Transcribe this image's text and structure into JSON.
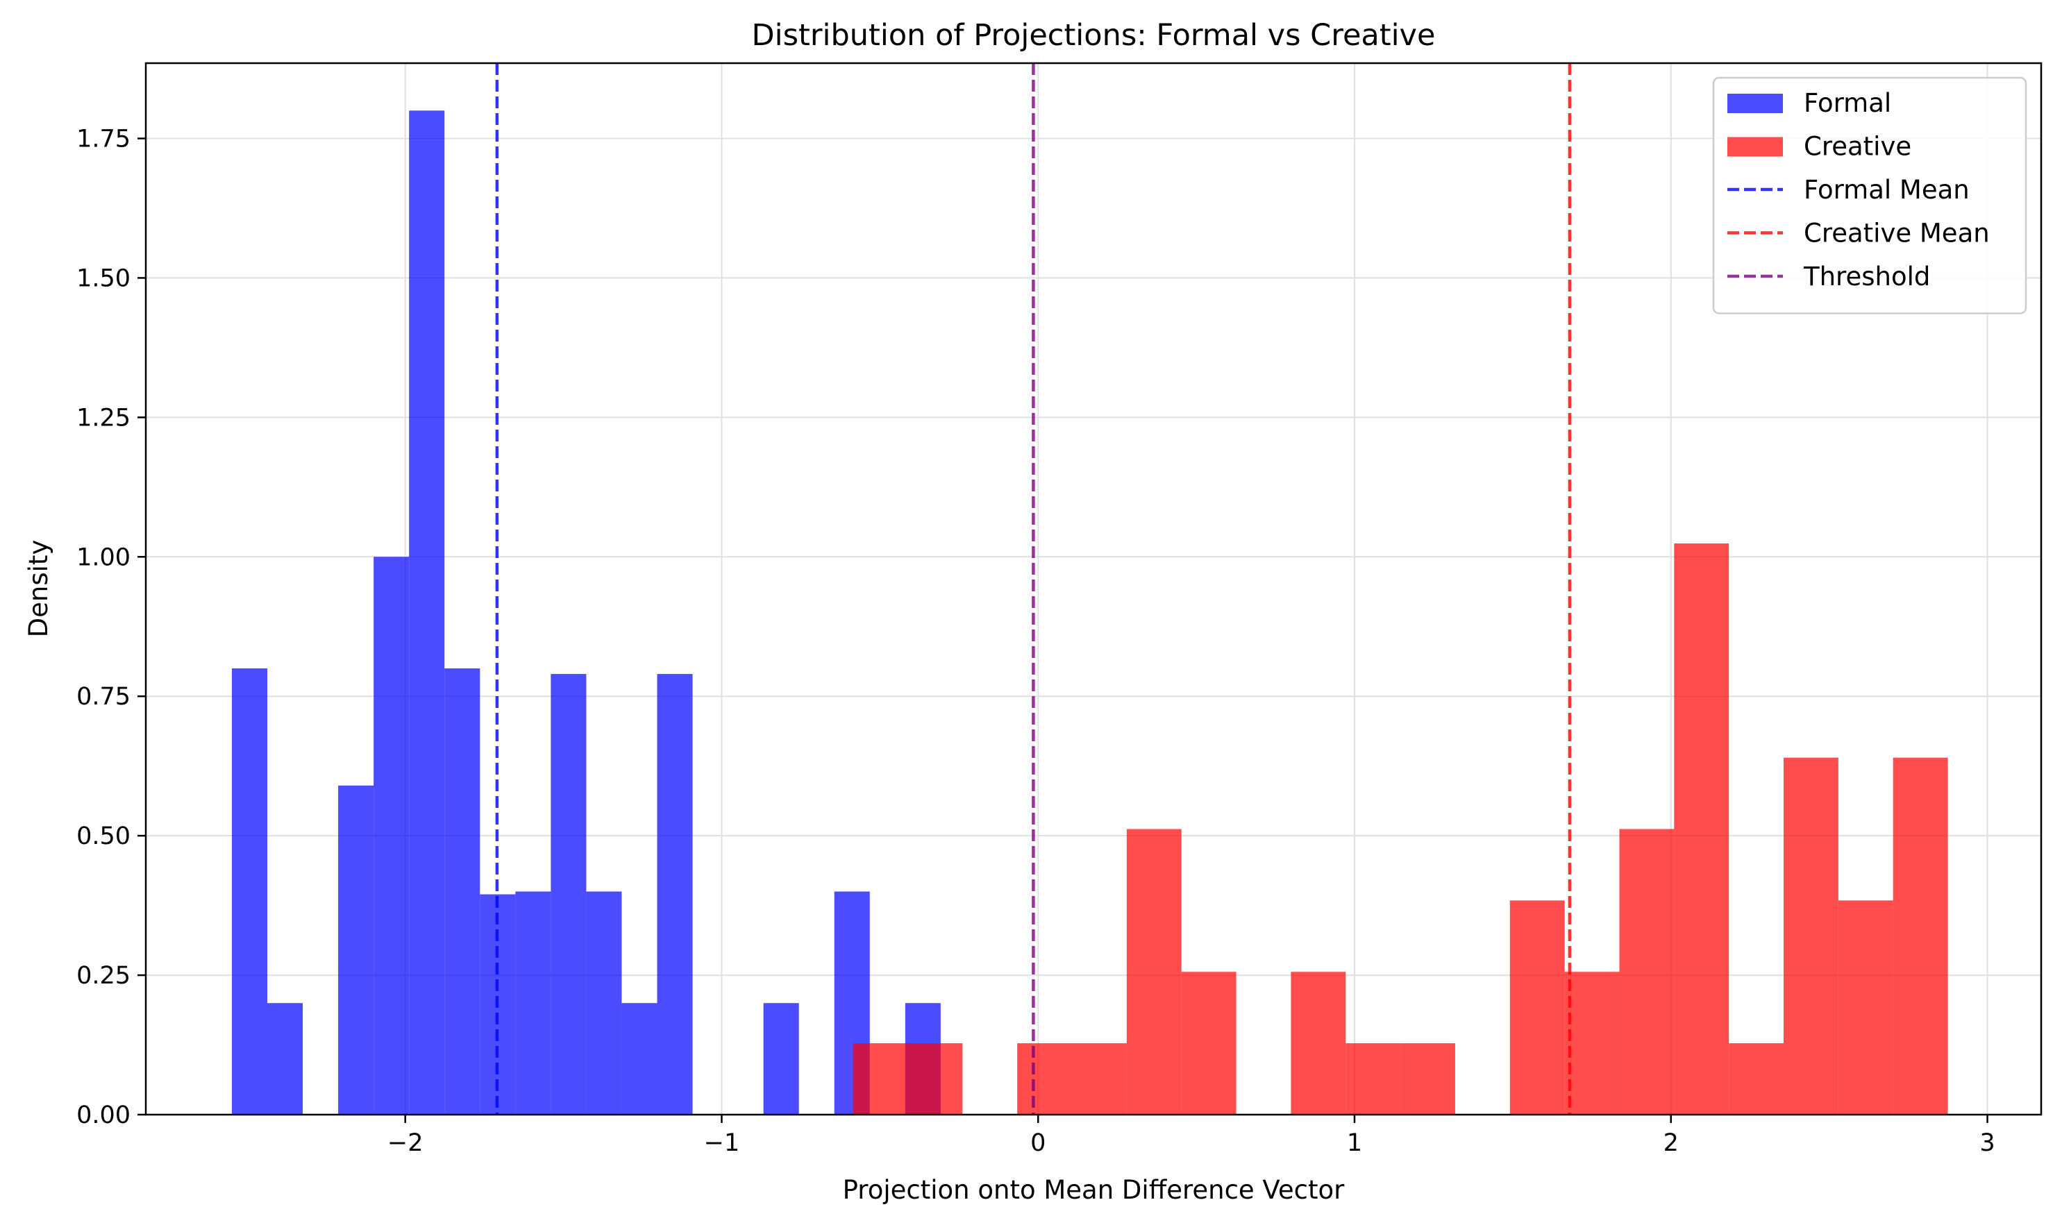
{
  "chart_data": {
    "type": "histogram",
    "title": "Distribution of Projections: Formal vs Creative",
    "xlabel": "Projection onto Mean Difference Vector",
    "ylabel": "Density",
    "xlim": [
      -2.82,
      3.17
    ],
    "ylim": [
      0,
      1.885
    ],
    "grid": true,
    "legend_position": "top-right",
    "x_ticks": [
      {
        "value": -2,
        "label": "−2"
      },
      {
        "value": -1,
        "label": "−1"
      },
      {
        "value": 0,
        "label": "0"
      },
      {
        "value": 1,
        "label": "1"
      },
      {
        "value": 2,
        "label": "2"
      },
      {
        "value": 3,
        "label": "3"
      }
    ],
    "y_ticks": [
      {
        "value": 0,
        "label": "0.00"
      },
      {
        "value": 0.25,
        "label": "0.25"
      },
      {
        "value": 0.5,
        "label": "0.50"
      },
      {
        "value": 0.75,
        "label": "0.75"
      },
      {
        "value": 1.0,
        "label": "1.00"
      },
      {
        "value": 1.25,
        "label": "1.25"
      },
      {
        "value": 1.5,
        "label": "1.50"
      },
      {
        "value": 1.75,
        "label": "1.75"
      }
    ],
    "series": [
      {
        "name": "Formal",
        "color": "#0000ff",
        "alpha": 0.7,
        "bins": [
          {
            "x0": -2.548,
            "x1": -2.436,
            "y": 0.8
          },
          {
            "x0": -2.436,
            "x1": -2.324,
            "y": 0.2
          },
          {
            "x0": -2.212,
            "x1": -2.1,
            "y": 0.59
          },
          {
            "x0": -2.1,
            "x1": -1.988,
            "y": 1.0
          },
          {
            "x0": -1.988,
            "x1": -1.876,
            "y": 1.8
          },
          {
            "x0": -1.876,
            "x1": -1.764,
            "y": 0.8
          },
          {
            "x0": -1.764,
            "x1": -1.652,
            "y": 0.395
          },
          {
            "x0": -1.652,
            "x1": -1.54,
            "y": 0.4
          },
          {
            "x0": -1.54,
            "x1": -1.428,
            "y": 0.79
          },
          {
            "x0": -1.428,
            "x1": -1.316,
            "y": 0.4
          },
          {
            "x0": -1.316,
            "x1": -1.204,
            "y": 0.2
          },
          {
            "x0": -1.204,
            "x1": -1.092,
            "y": 0.79
          },
          {
            "x0": -0.868,
            "x1": -0.756,
            "y": 0.2
          },
          {
            "x0": -0.644,
            "x1": -0.532,
            "y": 0.4
          },
          {
            "x0": -0.42,
            "x1": -0.308,
            "y": 0.2
          }
        ]
      },
      {
        "name": "Creative",
        "color": "#ff0000",
        "alpha": 0.7,
        "bins": [
          {
            "x0": -0.585,
            "x1": -0.412,
            "y": 0.128
          },
          {
            "x0": -0.412,
            "x1": -0.239,
            "y": 0.128
          },
          {
            "x0": -0.066,
            "x1": 0.107,
            "y": 0.128
          },
          {
            "x0": 0.107,
            "x1": 0.28,
            "y": 0.128
          },
          {
            "x0": 0.28,
            "x1": 0.453,
            "y": 0.512
          },
          {
            "x0": 0.453,
            "x1": 0.626,
            "y": 0.256
          },
          {
            "x0": 0.799,
            "x1": 0.972,
            "y": 0.256
          },
          {
            "x0": 0.972,
            "x1": 1.145,
            "y": 0.128
          },
          {
            "x0": 1.145,
            "x1": 1.318,
            "y": 0.128
          },
          {
            "x0": 1.491,
            "x1": 1.664,
            "y": 0.384
          },
          {
            "x0": 1.664,
            "x1": 1.837,
            "y": 0.256
          },
          {
            "x0": 1.837,
            "x1": 2.01,
            "y": 0.512
          },
          {
            "x0": 2.01,
            "x1": 2.183,
            "y": 1.024
          },
          {
            "x0": 2.183,
            "x1": 2.356,
            "y": 0.128
          },
          {
            "x0": 2.356,
            "x1": 2.529,
            "y": 0.64
          },
          {
            "x0": 2.529,
            "x1": 2.702,
            "y": 0.384
          },
          {
            "x0": 2.702,
            "x1": 2.875,
            "y": 0.64
          }
        ]
      }
    ],
    "vlines": [
      {
        "name": "Formal Mean",
        "x": -1.71,
        "color": "#0000ff"
      },
      {
        "name": "Creative Mean",
        "x": 1.68,
        "color": "#ff0000"
      },
      {
        "name": "Threshold",
        "x": -0.015,
        "color": "#800080"
      }
    ],
    "legend": [
      {
        "label": "Formal",
        "kind": "patch",
        "color": "#0000ff"
      },
      {
        "label": "Creative",
        "kind": "patch",
        "color": "#ff0000"
      },
      {
        "label": "Formal Mean",
        "kind": "line",
        "color": "#0000ff"
      },
      {
        "label": "Creative Mean",
        "kind": "line",
        "color": "#ff0000"
      },
      {
        "label": "Threshold",
        "kind": "line",
        "color": "#800080"
      }
    ]
  }
}
